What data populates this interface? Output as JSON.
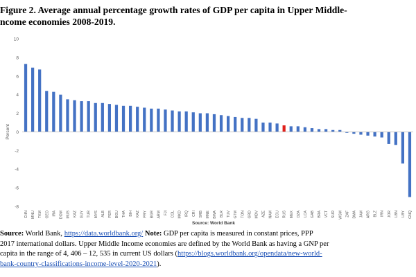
{
  "figure": {
    "caption_line1": "Figure 2. Average annual percentage growth rates of GDP per capita in Upper Middle-",
    "caption_line2": "ncome economies 2008-2019."
  },
  "chart_data": {
    "type": "bar",
    "ylabel": "Percent",
    "xlabel": "Source: World Bank",
    "ylim": [
      -8,
      10
    ],
    "yticks": [
      -8,
      -6,
      -4,
      -2,
      0,
      2,
      4,
      6,
      8,
      10
    ],
    "grid": false,
    "legend": "none",
    "bar_color": "#4472c4",
    "highlight_color": "#e0201b",
    "highlight_category": "RUS",
    "categories": [
      "CHN",
      "MNU",
      "TKM",
      "GEO",
      "IRA",
      "DOM",
      "MUS",
      "KAZ",
      "GUY",
      "TUR",
      "MYS",
      "ALB",
      "PER",
      "BGU",
      "THA",
      "BIH",
      "KAZ",
      "PRY",
      "BGR",
      "ARM",
      "FJI",
      "COL",
      "MKD",
      "IRQ",
      "CRI",
      "SRB",
      "MNE",
      "BWA",
      "BLR",
      "TUV",
      "GTM",
      "TON",
      "GRD",
      "MDV",
      "AZE",
      "NAM",
      "ECU",
      "RUS",
      "MEX",
      "DZA",
      "LCA",
      "GAB",
      "BRA",
      "VCT",
      "SUR",
      "WSM",
      "ZAF",
      "DMA",
      "JAM",
      "ARG",
      "BLZ",
      "IRN",
      "JOR",
      "LBN",
      "LBY",
      "GNQ"
    ],
    "values": [
      7.3,
      6.9,
      6.7,
      4.4,
      4.3,
      4.0,
      3.5,
      3.4,
      3.3,
      3.3,
      3.1,
      3.1,
      3.0,
      2.9,
      2.8,
      2.8,
      2.7,
      2.6,
      2.5,
      2.5,
      2.4,
      2.3,
      2.2,
      2.2,
      2.1,
      2.0,
      2.0,
      1.9,
      1.8,
      1.7,
      1.6,
      1.5,
      1.5,
      1.4,
      1.0,
      1.0,
      0.9,
      0.7,
      0.6,
      0.6,
      0.5,
      0.4,
      0.3,
      0.3,
      0.2,
      0.2,
      -0.1,
      -0.2,
      -0.3,
      -0.4,
      -0.5,
      -0.6,
      -1.3,
      -1.4,
      -3.4,
      -7.0
    ]
  },
  "notes": {
    "source_label": "Source:",
    "source_text": " World Bank, ",
    "source_link": "https://data.worldbank.org/",
    "note_label": " Note:",
    "note_text1": " GDP per capita is measured in constant prices, PPP",
    "line2": "2017 international dollars. Upper Middle Income economies are defined by the World Bank as having a GNP per",
    "line3_text": "capita in the range of 4, 406 – 12, 535 in current US dollars (",
    "line3_link": "https://blogs.worldbank.org/opendata/new-world-",
    "line4_link": "bank-country-classifications-income-level-2020-2021",
    "line4_text": ")."
  }
}
